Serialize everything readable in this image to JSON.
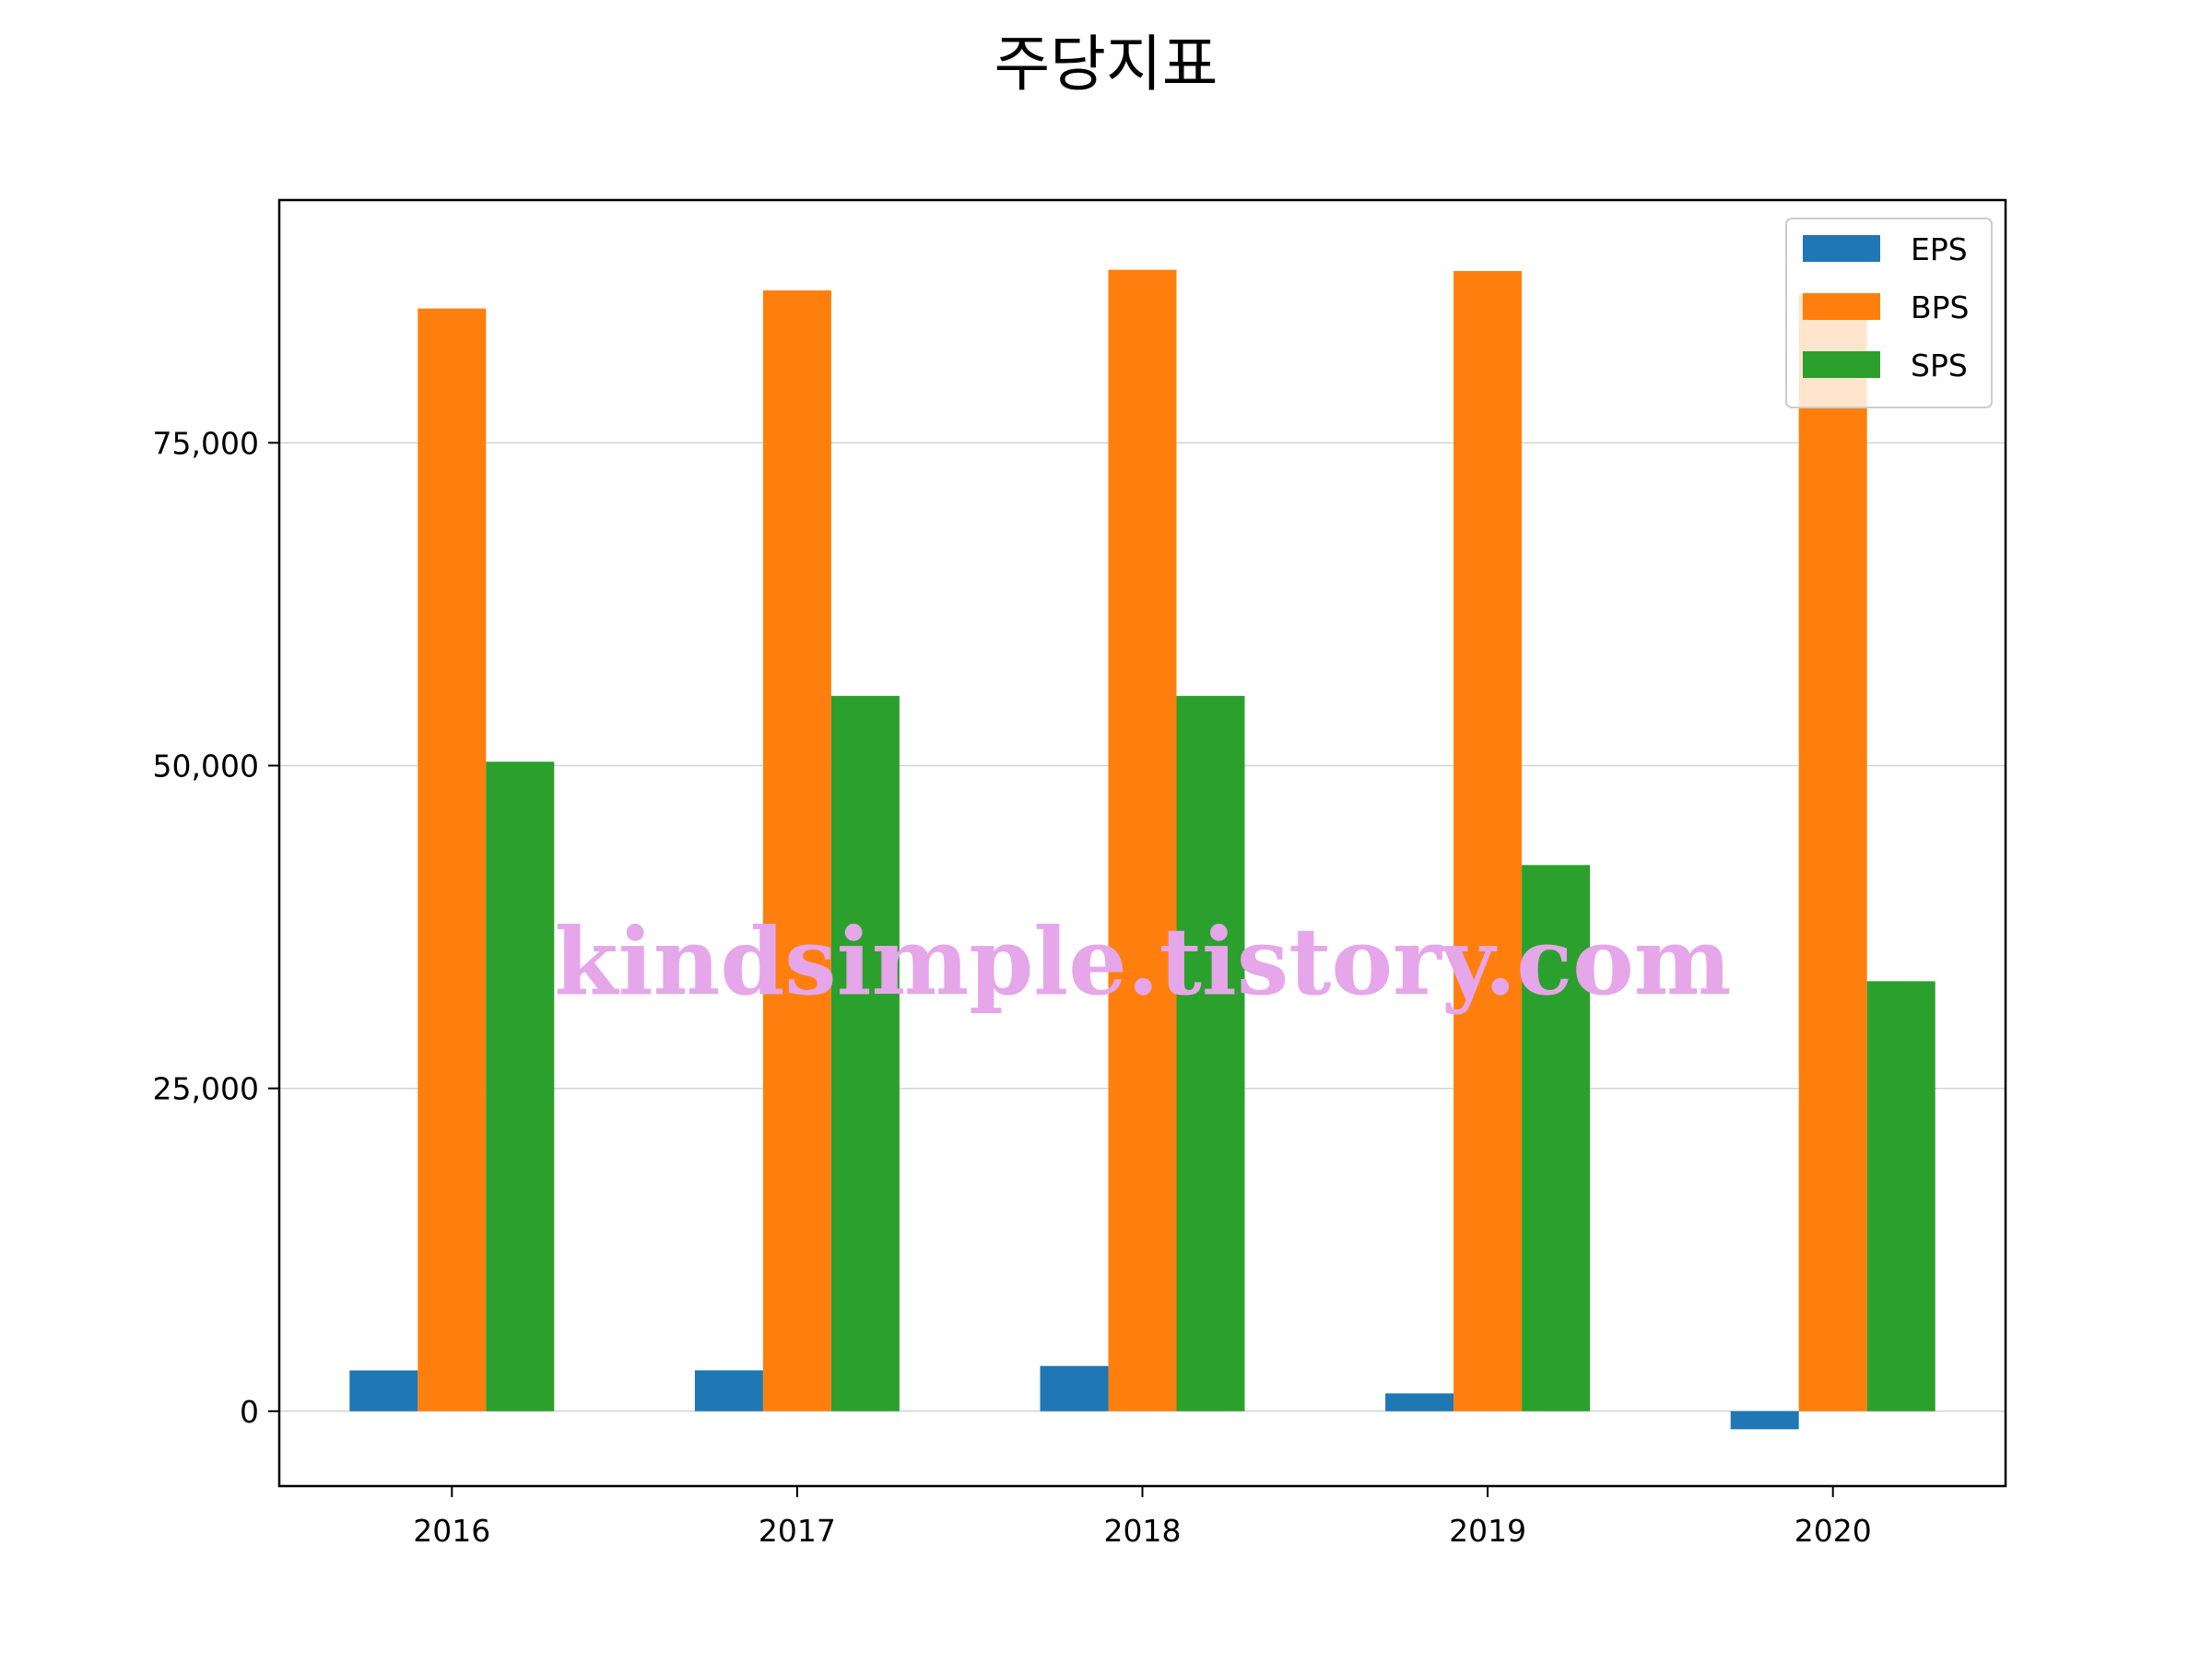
{
  "chart_data": {
    "type": "bar",
    "title": "주당지표",
    "xlabel": "",
    "ylabel": "",
    "categories": [
      "2016",
      "2017",
      "2018",
      "2019",
      "2020"
    ],
    "series": [
      {
        "name": "EPS",
        "color": "#1f77b4",
        "values": [
          3160,
          3166,
          3500,
          1380,
          -1400
        ]
      },
      {
        "name": "BPS",
        "color": "#ff7f0e",
        "values": [
          85400,
          86800,
          88400,
          88300,
          86500
        ]
      },
      {
        "name": "SPS",
        "color": "#2ca02c",
        "values": [
          50300,
          55400,
          55400,
          42300,
          33300
        ]
      }
    ],
    "ylim": [
      -5800,
      93800
    ],
    "yticks": [
      0,
      25000,
      50000,
      75000
    ],
    "ytick_labels": [
      "0",
      "25,000",
      "50,000",
      "75,000"
    ],
    "grid": {
      "y": true,
      "x": false
    },
    "legend_position": "top-right"
  },
  "watermark": "kindsimple.tistory.com"
}
